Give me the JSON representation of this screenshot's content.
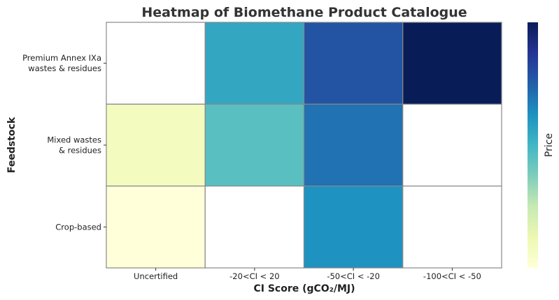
{
  "chart_data": {
    "type": "heatmap",
    "title": "Heatmap of Biomethane Product Catalogue",
    "xlabel": "CI Score (gCO₂/MJ)",
    "ylabel": "Feedstock",
    "colorbar_label": "Price",
    "colormap": "YlGnBu",
    "x_categories": [
      "Uncertified",
      "-20<CI < 20",
      "-50<CI < -20",
      "-100<CI < -50"
    ],
    "y_categories": [
      [
        "Premium Annex IXa",
        "wastes & residues"
      ],
      [
        "Mixed wastes",
        "& residues"
      ],
      [
        "Crop-based"
      ]
    ],
    "values": [
      [
        null,
        0.55,
        0.78,
        1.0
      ],
      [
        0.08,
        0.45,
        0.7,
        null
      ],
      [
        0.0,
        null,
        0.62,
        null
      ]
    ],
    "value_range": [
      0,
      1
    ],
    "missing_color": "#ffffff",
    "grid_color": "#888888"
  }
}
